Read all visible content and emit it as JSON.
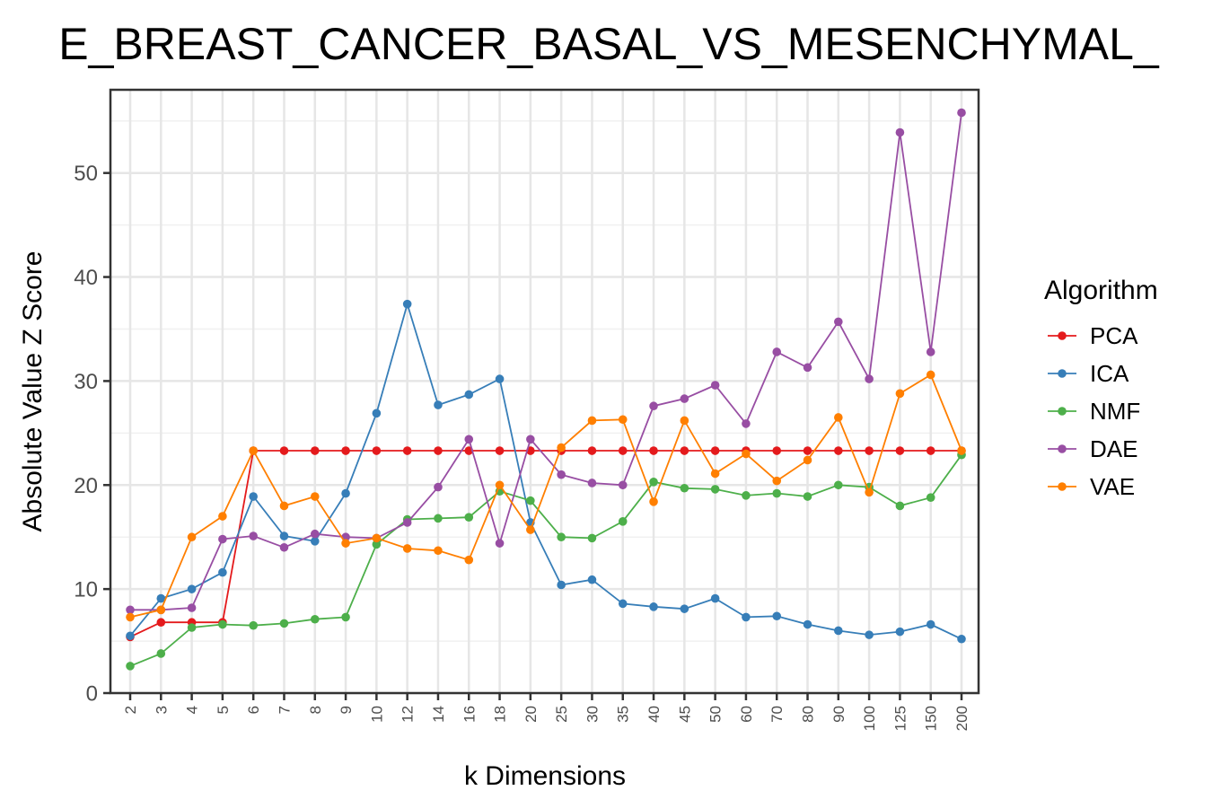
{
  "chart_data": {
    "type": "line",
    "title": "E_BREAST_CANCER_BASAL_VS_MESENCHYMAL_",
    "xlabel": "k Dimensions",
    "ylabel": "Absolute Value Z Score",
    "categories": [
      "2",
      "3",
      "4",
      "5",
      "6",
      "7",
      "8",
      "9",
      "10",
      "12",
      "14",
      "16",
      "18",
      "20",
      "25",
      "30",
      "35",
      "40",
      "45",
      "50",
      "60",
      "70",
      "80",
      "90",
      "100",
      "125",
      "150",
      "200"
    ],
    "ylim": [
      0,
      58
    ],
    "yticks": [
      0,
      10,
      20,
      30,
      40,
      50
    ],
    "grid": true,
    "legend_title": "Algorithm",
    "legend_position": "right",
    "series": [
      {
        "name": "PCA",
        "color": "#e41a1c",
        "values": [
          5.4,
          6.8,
          6.8,
          6.8,
          23.3,
          23.3,
          23.3,
          23.3,
          23.3,
          23.3,
          23.3,
          23.3,
          23.3,
          23.3,
          23.3,
          23.3,
          23.3,
          23.3,
          23.3,
          23.3,
          23.3,
          23.3,
          23.3,
          23.3,
          23.3,
          23.3,
          23.3,
          23.3
        ]
      },
      {
        "name": "ICA",
        "color": "#377eb8",
        "values": [
          5.5,
          9.1,
          10.0,
          11.6,
          18.9,
          15.1,
          14.6,
          19.2,
          26.9,
          37.4,
          27.7,
          28.7,
          30.2,
          16.4,
          10.4,
          10.9,
          8.6,
          8.3,
          8.1,
          9.1,
          7.3,
          7.4,
          6.6,
          6.0,
          5.6,
          5.9,
          6.6,
          5.2
        ]
      },
      {
        "name": "NMF",
        "color": "#4daf4a",
        "values": [
          2.6,
          3.8,
          6.3,
          6.6,
          6.5,
          6.7,
          7.1,
          7.3,
          14.3,
          16.7,
          16.8,
          16.9,
          19.4,
          18.5,
          15.0,
          14.9,
          16.5,
          20.3,
          19.7,
          19.6,
          19.0,
          19.2,
          18.9,
          20.0,
          19.8,
          18.0,
          18.8,
          22.9
        ]
      },
      {
        "name": "DAE",
        "color": "#984ea3",
        "values": [
          8.0,
          8.0,
          8.2,
          14.8,
          15.1,
          14.0,
          15.3,
          15.0,
          14.9,
          16.4,
          19.8,
          24.4,
          14.4,
          24.4,
          21.0,
          20.2,
          20.0,
          27.6,
          28.3,
          29.6,
          25.9,
          32.8,
          31.3,
          35.7,
          30.2,
          53.9,
          32.8,
          55.8
        ]
      },
      {
        "name": "VAE",
        "color": "#ff7f00",
        "values": [
          7.3,
          8.0,
          15.0,
          17.0,
          23.3,
          18.0,
          18.9,
          14.4,
          14.9,
          13.9,
          13.7,
          12.8,
          20.0,
          15.7,
          23.6,
          26.2,
          26.3,
          18.4,
          26.2,
          21.1,
          23.0,
          20.4,
          22.4,
          26.5,
          19.3,
          28.8,
          30.6,
          23.3
        ]
      }
    ]
  }
}
